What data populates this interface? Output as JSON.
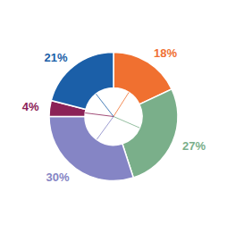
{
  "chart_data": {
    "type": "pie",
    "values": [
      18,
      27,
      30,
      4,
      21
    ],
    "value_labels": [
      "18%",
      "27%",
      "30%",
      "4%",
      "21%"
    ],
    "colors": [
      "#F07030",
      "#7AAF8A",
      "#8585C5",
      "#8B2257",
      "#1B5FA8"
    ],
    "data_labels": true
  }
}
